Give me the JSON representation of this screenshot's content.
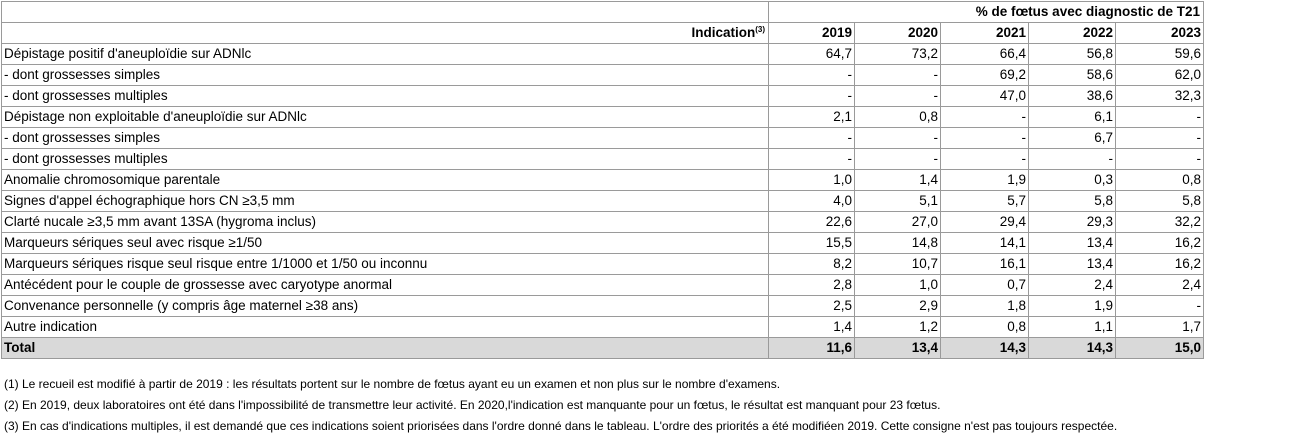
{
  "header": {
    "group_label": "% de fœtus avec diagnostic de T21",
    "indication_label": "Indication",
    "indication_note": "(3)",
    "years": [
      "2019",
      "2020",
      "2021",
      "2022",
      "2023"
    ]
  },
  "rows": [
    {
      "label": "Dépistage positif d'aneuploïdie sur ADNlc",
      "values": [
        "64,7",
        "73,2",
        "66,4",
        "56,8",
        "59,6"
      ]
    },
    {
      "label": "- dont grossesses simples",
      "values": [
        "-",
        "-",
        "69,2",
        "58,6",
        "62,0"
      ]
    },
    {
      "label": "- dont grossesses multiples",
      "values": [
        "-",
        "-",
        "47,0",
        "38,6",
        "32,3"
      ]
    },
    {
      "label": "Dépistage non exploitable d'aneuploïdie sur ADNlc",
      "values": [
        "2,1",
        "0,8",
        "-",
        "6,1",
        "-"
      ]
    },
    {
      "label": "- dont grossesses simples",
      "values": [
        "-",
        "-",
        "-",
        "6,7",
        "-"
      ]
    },
    {
      "label": "- dont grossesses multiples",
      "values": [
        "-",
        "-",
        "-",
        "-",
        "-"
      ]
    },
    {
      "label": "Anomalie chromosomique parentale",
      "values": [
        "1,0",
        "1,4",
        "1,9",
        "0,3",
        "0,8"
      ]
    },
    {
      "label": "Signes d'appel échographique hors CN ≥3,5 mm",
      "values": [
        "4,0",
        "5,1",
        "5,7",
        "5,8",
        "5,8"
      ]
    },
    {
      "label": "Clarté nucale ≥3,5 mm avant 13SA (hygroma inclus)",
      "values": [
        "22,6",
        "27,0",
        "29,4",
        "29,3",
        "32,2"
      ]
    },
    {
      "label": "Marqueurs sériques seul avec risque ≥1/50",
      "values": [
        "15,5",
        "14,8",
        "14,1",
        "13,4",
        "16,2"
      ]
    },
    {
      "label": "Marqueurs sériques risque seul risque entre 1/1000 et 1/50 ou inconnu",
      "values": [
        "8,2",
        "10,7",
        "16,1",
        "13,4",
        "16,2"
      ]
    },
    {
      "label": "Antécédent pour le couple de grossesse avec caryotype anormal",
      "values": [
        "2,8",
        "1,0",
        "0,7",
        "2,4",
        "2,4"
      ]
    },
    {
      "label": "Convenance personnelle (y compris âge maternel ≥38 ans)",
      "values": [
        "2,5",
        "2,9",
        "1,8",
        "1,9",
        "-"
      ]
    },
    {
      "label": "Autre indication",
      "values": [
        "1,4",
        "1,2",
        "0,8",
        "1,1",
        "1,7"
      ]
    }
  ],
  "total": {
    "label": "Total",
    "values": [
      "11,6",
      "13,4",
      "14,3",
      "14,3",
      "15,0"
    ]
  },
  "notes": [
    "(1) Le recueil est modifié à partir de 2019 : les résultats portent sur le nombre de fœtus ayant eu un examen et non plus sur le nombre d'examens.",
    "(2) En 2019, deux laboratoires ont été dans l'impossibilité de transmettre leur activité. En 2020,l'indication est manquante pour un fœtus, le résultat est manquant pour 23 fœtus.",
    "(3) En cas d'indications multiples, il est demandé que ces indications soient priorisées dans l'ordre donné dans le tableau. L'ordre des priorités a été modifiéen 2019. Cette consigne n'est pas toujours respectée."
  ]
}
